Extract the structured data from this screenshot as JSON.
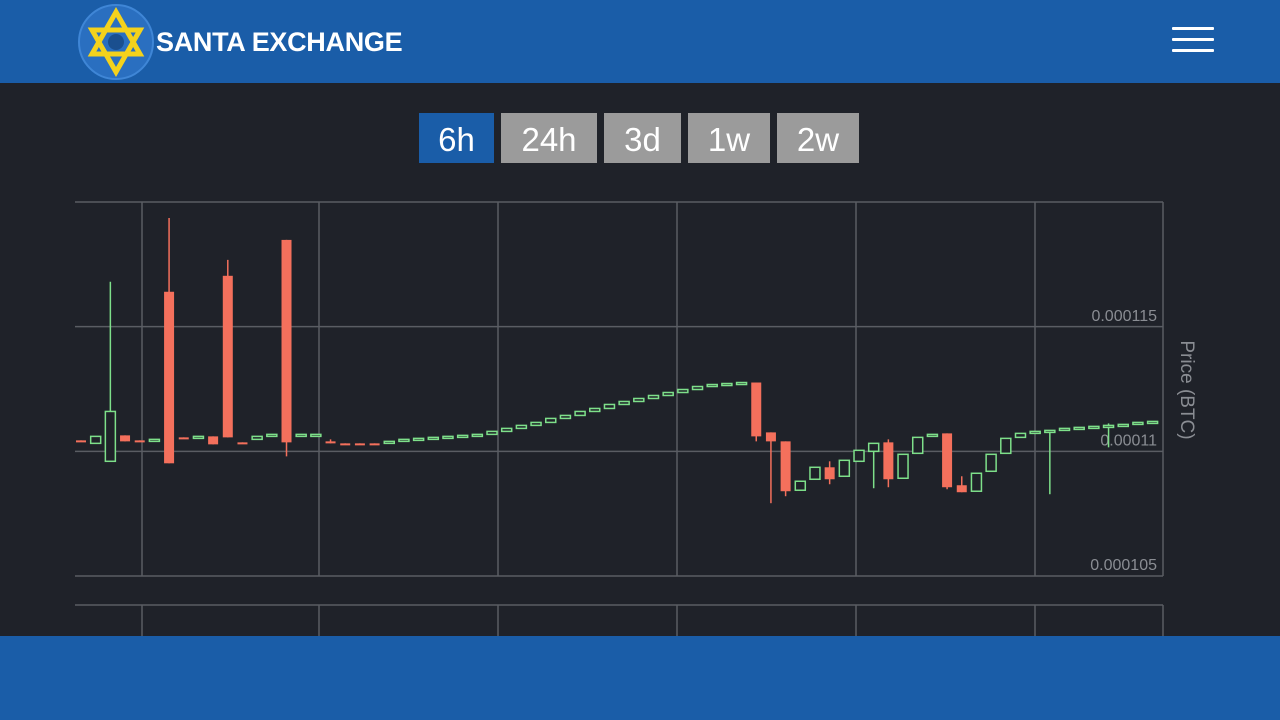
{
  "header": {
    "title": "SANTA EXCHANGE"
  },
  "buttons": [
    "6h",
    "24h",
    "3d",
    "1w",
    "2w"
  ],
  "chart_data": {
    "type": "candlestick",
    "ylabel": "Price (BTC)",
    "ylim": [
      0.000105,
      0.00012
    ],
    "yticks": [
      0.000105,
      0.00011,
      0.000115
    ],
    "grid": true,
    "up_color": "#7ee08a",
    "down_color": "#f4705c",
    "open": [
      0.00011044,
      0.00011032,
      0.0001096,
      0.00011064,
      0.00011044,
      0.0001104,
      0.0001164,
      0.00011056,
      0.00011056,
      0.0001106,
      0.00011704,
      0.00011036,
      0.00011048,
      0.0001106,
      0.00011848,
      0.00011064,
      0.00011064,
      0.0001104,
      0.00011032,
      0.00011032,
      0.00011032,
      0.00011032,
      0.0001104,
      0.00011048,
      0.00011052,
      0.00011056,
      0.0001106,
      0.00011064,
      0.00011068,
      0.0001108,
      0.00011092,
      0.00011104,
      0.00011116,
      0.00011132,
      0.00011144,
      0.0001116,
      0.00011172,
      0.00011188,
      0.000112,
      0.00011212,
      0.00011224,
      0.00011236,
      0.00011248,
      0.0001126,
      0.00011268,
      0.00011272,
      0.00011276,
      0.00011076,
      0.0001104,
      0.00010844,
      0.00010888,
      0.00010936,
      0.000109,
      0.0001096,
      0.00011,
      0.00011036,
      0.00010892,
      0.00010992,
      0.0001106,
      0.00011072,
      0.00010864,
      0.0001084,
      0.0001092,
      0.00010992,
      0.00011056,
      0.00011072,
      0.0001108,
      0.00011084,
      0.00011092,
      0.00011096,
      0.000111,
      0.00011104,
      0.00011108,
      0.00011116
    ],
    "high": [
      0.00011044,
      0.0001106,
      0.0001168,
      0.00011064,
      0.00011044,
      0.00011048,
      0.00011936,
      0.00011056,
      0.0001106,
      0.0001106,
      0.00011768,
      0.00011036,
      0.0001106,
      0.00011068,
      0.00011848,
      0.00011068,
      0.00011068,
      0.00011048,
      0.00011032,
      0.00011032,
      0.00011032,
      0.0001104,
      0.00011048,
      0.00011052,
      0.00011056,
      0.0001106,
      0.00011064,
      0.00011068,
      0.0001108,
      0.00011092,
      0.00011104,
      0.00011116,
      0.00011132,
      0.00011144,
      0.0001116,
      0.00011172,
      0.00011188,
      0.000112,
      0.00011212,
      0.00011224,
      0.00011236,
      0.00011248,
      0.0001126,
      0.00011268,
      0.00011272,
      0.00011276,
      0.00011276,
      0.00011076,
      0.0001104,
      0.0001088,
      0.00010936,
      0.0001096,
      0.00010964,
      0.00011004,
      0.00011032,
      0.00011048,
      0.00010988,
      0.00011056,
      0.00011068,
      0.00011072,
      0.000109,
      0.00010912,
      0.00010988,
      0.00011052,
      0.00011072,
      0.0001108,
      0.00011084,
      0.00011092,
      0.00011096,
      0.000111,
      0.00011112,
      0.00011108,
      0.00011116,
      0.0001112
    ],
    "low": [
      0.0001104,
      0.00011032,
      0.0001096,
      0.0001104,
      0.0001104,
      0.0001104,
      0.00010952,
      0.00011052,
      0.00011056,
      0.00011028,
      0.00011056,
      0.00011032,
      0.00011048,
      0.0001106,
      0.0001098,
      0.00011064,
      0.00011064,
      0.00011032,
      0.00011028,
      0.00011028,
      0.00011028,
      0.00011032,
      0.0001104,
      0.00011048,
      0.00011052,
      0.00011056,
      0.0001106,
      0.00011064,
      0.00011068,
      0.0001108,
      0.00011092,
      0.00011104,
      0.00011116,
      0.00011132,
      0.00011144,
      0.0001116,
      0.00011172,
      0.00011188,
      0.000112,
      0.00011212,
      0.00011224,
      0.00011236,
      0.00011248,
      0.0001126,
      0.00011268,
      0.00011272,
      0.0001104,
      0.00010792,
      0.0001082,
      0.00010844,
      0.00010888,
      0.00010868,
      0.000109,
      0.0001096,
      0.00010852,
      0.00010856,
      0.00010892,
      0.00010992,
      0.0001106,
      0.00010848,
      0.00010836,
      0.0001084,
      0.0001092,
      0.00010992,
      0.00011056,
      0.00011072,
      0.00010828,
      0.00011084,
      0.00011092,
      0.00011096,
      0.00011016,
      0.00011104,
      0.00011108,
      0.00011116
    ],
    "close": [
      0.0001104,
      0.0001106,
      0.0001116,
      0.0001104,
      0.0001104,
      0.00011048,
      0.00010952,
      0.00011052,
      0.0001106,
      0.00011028,
      0.00011056,
      0.00011032,
      0.0001106,
      0.00011068,
      0.00011036,
      0.00011068,
      0.00011068,
      0.00011032,
      0.00011028,
      0.00011028,
      0.00011028,
      0.0001104,
      0.00011048,
      0.00011052,
      0.00011056,
      0.0001106,
      0.00011064,
      0.00011068,
      0.0001108,
      0.00011092,
      0.00011104,
      0.00011116,
      0.00011132,
      0.00011144,
      0.0001116,
      0.00011172,
      0.00011188,
      0.000112,
      0.00011212,
      0.00011224,
      0.00011236,
      0.00011248,
      0.0001126,
      0.00011268,
      0.00011272,
      0.00011276,
      0.0001106,
      0.0001104,
      0.0001084,
      0.0001088,
      0.00010936,
      0.00010888,
      0.00010964,
      0.00011004,
      0.00011032,
      0.00010888,
      0.00010988,
      0.00011056,
      0.00011068,
      0.00010856,
      0.00010836,
      0.00010912,
      0.00010988,
      0.00011052,
      0.00011072,
      0.0001108,
      0.00011084,
      0.00011092,
      0.00011096,
      0.000111,
      0.00011104,
      0.00011108,
      0.00011116,
      0.0001112
    ]
  }
}
